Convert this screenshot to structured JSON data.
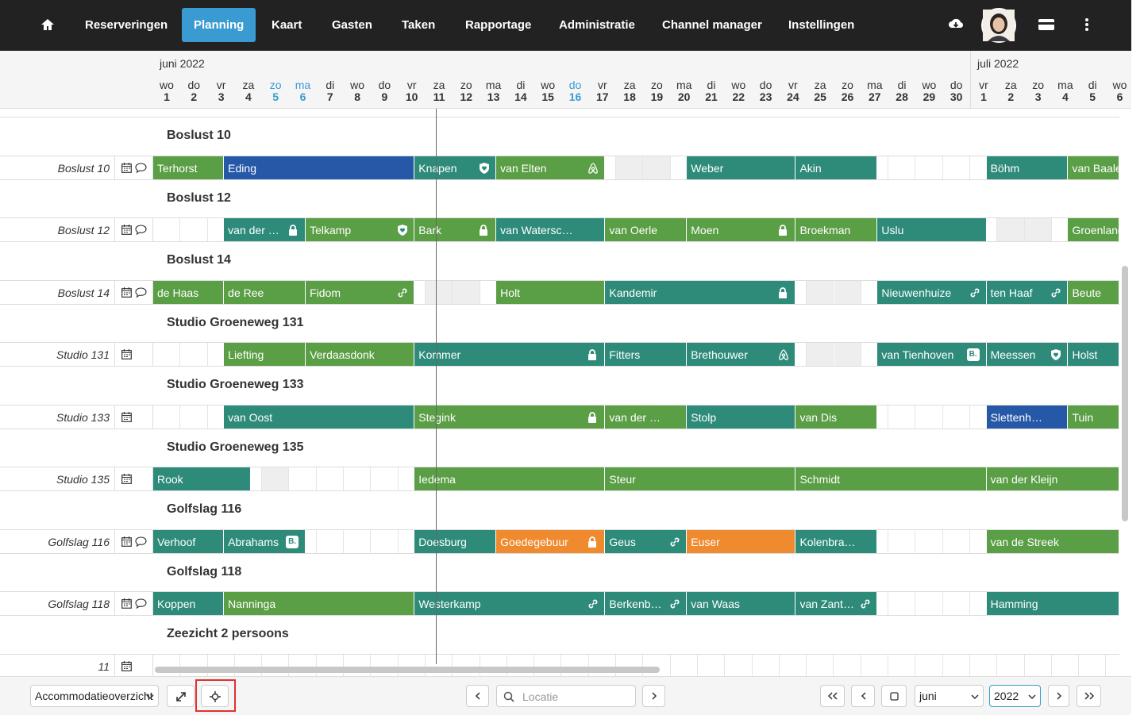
{
  "nav": {
    "items": [
      "Reserveringen",
      "Planning",
      "Kaart",
      "Gasten",
      "Taken",
      "Rapportage",
      "Administratie",
      "Channel manager",
      "Instellingen"
    ],
    "active": "Planning",
    "icons": [
      "home-icon",
      "cloud-download-icon",
      "user-avatar",
      "card-icon",
      "more-vertical-icon"
    ]
  },
  "calendar": {
    "months": [
      "juni 2022",
      "juli 2022"
    ],
    "days": [
      {
        "d": "wo",
        "n": "1"
      },
      {
        "d": "do",
        "n": "2"
      },
      {
        "d": "vr",
        "n": "3"
      },
      {
        "d": "za",
        "n": "4"
      },
      {
        "d": "zo",
        "n": "5",
        "hl": true
      },
      {
        "d": "ma",
        "n": "6",
        "hl": true
      },
      {
        "d": "di",
        "n": "7"
      },
      {
        "d": "wo",
        "n": "8"
      },
      {
        "d": "do",
        "n": "9"
      },
      {
        "d": "vr",
        "n": "10"
      },
      {
        "d": "za",
        "n": "11"
      },
      {
        "d": "zo",
        "n": "12"
      },
      {
        "d": "ma",
        "n": "13"
      },
      {
        "d": "di",
        "n": "14"
      },
      {
        "d": "wo",
        "n": "15"
      },
      {
        "d": "do",
        "n": "16",
        "hl": true
      },
      {
        "d": "vr",
        "n": "17"
      },
      {
        "d": "za",
        "n": "18"
      },
      {
        "d": "zo",
        "n": "19"
      },
      {
        "d": "ma",
        "n": "20"
      },
      {
        "d": "di",
        "n": "21"
      },
      {
        "d": "wo",
        "n": "22"
      },
      {
        "d": "do",
        "n": "23"
      },
      {
        "d": "vr",
        "n": "24"
      },
      {
        "d": "za",
        "n": "25"
      },
      {
        "d": "zo",
        "n": "26"
      },
      {
        "d": "ma",
        "n": "27"
      },
      {
        "d": "di",
        "n": "28"
      },
      {
        "d": "wo",
        "n": "29"
      },
      {
        "d": "do",
        "n": "30"
      },
      {
        "d": "vr",
        "n": "1"
      },
      {
        "d": "za",
        "n": "2"
      },
      {
        "d": "zo",
        "n": "3"
      },
      {
        "d": "ma",
        "n": "4"
      },
      {
        "d": "di",
        "n": "5"
      },
      {
        "d": "wo",
        "n": "6"
      }
    ]
  },
  "rows": [
    {
      "section": "Boslust 10",
      "unit": "Boslust 10",
      "comment": true,
      "bars": [
        {
          "s": 0,
          "e": 2.6,
          "c": "green",
          "t": "Terhorst"
        },
        {
          "s": 2.6,
          "e": 9.6,
          "c": "blue",
          "t": "Eding"
        },
        {
          "s": 9.6,
          "e": 12.6,
          "c": "teal",
          "t": "Knapen",
          "i": "heart-shield-icon"
        },
        {
          "s": 12.6,
          "e": 16.6,
          "c": "green",
          "t": "van Elten",
          "i": "airbnb-icon"
        },
        {
          "s": 19.6,
          "e": 23.6,
          "c": "teal",
          "t": "Weber"
        },
        {
          "s": 23.6,
          "e": 26.6,
          "c": "teal",
          "t": "Akin"
        },
        {
          "s": 30.6,
          "e": 33.6,
          "c": "teal",
          "t": "Böhm"
        },
        {
          "s": 33.6,
          "e": 36,
          "c": "green",
          "t": "van Baale"
        }
      ],
      "grey": [
        17,
        18
      ]
    },
    {
      "section": "Boslust 12",
      "unit": "Boslust 12",
      "comment": true,
      "bars": [
        {
          "s": 2.6,
          "e": 5.6,
          "c": "teal",
          "t": "van der …",
          "i": "lock-icon"
        },
        {
          "s": 5.6,
          "e": 9.6,
          "c": "green",
          "t": "Telkamp",
          "i": "heart-shield-icon"
        },
        {
          "s": 9.6,
          "e": 12.6,
          "c": "green",
          "t": "Bark",
          "i": "lock-icon"
        },
        {
          "s": 12.6,
          "e": 16.6,
          "c": "teal",
          "t": "van Watersc…"
        },
        {
          "s": 16.6,
          "e": 19.6,
          "c": "green",
          "t": "van Oerle"
        },
        {
          "s": 19.6,
          "e": 23.6,
          "c": "green",
          "t": "Moen",
          "i": "lock-icon"
        },
        {
          "s": 23.6,
          "e": 26.6,
          "c": "green",
          "t": "Broekman"
        },
        {
          "s": 26.6,
          "e": 30.6,
          "c": "teal",
          "t": "Uslu"
        },
        {
          "s": 33.6,
          "e": 36,
          "c": "green",
          "t": "Groenland"
        }
      ],
      "grey": [
        31,
        32
      ]
    },
    {
      "section": "Boslust 14",
      "unit": "Boslust 14",
      "comment": true,
      "bars": [
        {
          "s": 0,
          "e": 2.6,
          "c": "green",
          "t": "de Haas"
        },
        {
          "s": 2.6,
          "e": 5.6,
          "c": "green",
          "t": "de Ree"
        },
        {
          "s": 5.6,
          "e": 9.6,
          "c": "green",
          "t": "Fidom",
          "i": "link-icon"
        },
        {
          "s": 12.6,
          "e": 16.6,
          "c": "green",
          "t": "Holt"
        },
        {
          "s": 16.6,
          "e": 23.6,
          "c": "teal",
          "t": "Kandemir",
          "i": "lock-icon"
        },
        {
          "s": 26.6,
          "e": 30.6,
          "c": "teal",
          "t": "Nieuwenhuize",
          "i": "link-icon"
        },
        {
          "s": 30.6,
          "e": 33.6,
          "c": "teal",
          "t": "ten Haaf",
          "i": "link-icon"
        },
        {
          "s": 33.6,
          "e": 36,
          "c": "green",
          "t": "Beute"
        }
      ],
      "grey": [
        10,
        11,
        24,
        25
      ]
    },
    {
      "section": "Studio Groeneweg 131",
      "unit": "Studio 131",
      "comment": false,
      "bars": [
        {
          "s": 2.6,
          "e": 5.6,
          "c": "green",
          "t": "Liefting"
        },
        {
          "s": 5.6,
          "e": 9.6,
          "c": "green",
          "t": "Verdaasdonk"
        },
        {
          "s": 9.6,
          "e": 16.6,
          "c": "teal",
          "t": "Kommer",
          "i": "lock-icon"
        },
        {
          "s": 16.6,
          "e": 19.6,
          "c": "teal",
          "t": "Fitters"
        },
        {
          "s": 19.6,
          "e": 23.6,
          "c": "teal",
          "t": "Brethouwer",
          "i": "airbnb-icon"
        },
        {
          "s": 26.6,
          "e": 30.6,
          "c": "teal",
          "t": "van Tienhoven",
          "b": "B."
        },
        {
          "s": 30.6,
          "e": 33.6,
          "c": "teal",
          "t": "Meessen",
          "i": "heart-shield-icon"
        },
        {
          "s": 33.6,
          "e": 36,
          "c": "teal",
          "t": "Holst"
        }
      ],
      "grey": [
        24,
        25
      ]
    },
    {
      "section": "Studio Groeneweg 133",
      "unit": "Studio 133",
      "comment": false,
      "bars": [
        {
          "s": 2.6,
          "e": 9.6,
          "c": "teal",
          "t": "van Oost"
        },
        {
          "s": 9.6,
          "e": 16.6,
          "c": "green",
          "t": "Stegink",
          "i": "lock-icon"
        },
        {
          "s": 16.6,
          "e": 19.6,
          "c": "green",
          "t": "van der …"
        },
        {
          "s": 19.6,
          "e": 23.6,
          "c": "teal",
          "t": "Stolp"
        },
        {
          "s": 23.6,
          "e": 26.6,
          "c": "green",
          "t": "van Dis"
        },
        {
          "s": 30.6,
          "e": 33.6,
          "c": "blue",
          "t": "Slettenh…"
        },
        {
          "s": 33.6,
          "e": 36,
          "c": "green",
          "t": "Tuin"
        }
      ],
      "grey": []
    },
    {
      "section": "Studio Groeneweg 135",
      "unit": "Studio 135",
      "comment": false,
      "bars": [
        {
          "s": 0,
          "e": 3.6,
          "c": "teal",
          "t": "Rook"
        },
        {
          "s": 9.6,
          "e": 16.6,
          "c": "green",
          "t": "Iedema"
        },
        {
          "s": 16.6,
          "e": 23.6,
          "c": "green",
          "t": "Steur"
        },
        {
          "s": 23.6,
          "e": 30.6,
          "c": "green",
          "t": "Schmidt"
        },
        {
          "s": 30.6,
          "e": 36,
          "c": "green",
          "t": "van der Kleijn"
        }
      ],
      "grey": [
        4
      ]
    },
    {
      "section": "Golfslag 116",
      "unit": "Golfslag 116",
      "comment": true,
      "bars": [
        {
          "s": 0,
          "e": 2.6,
          "c": "teal",
          "t": "Verhoof"
        },
        {
          "s": 2.6,
          "e": 5.6,
          "c": "teal",
          "t": "Abrahams",
          "b": "B."
        },
        {
          "s": 9.6,
          "e": 12.6,
          "c": "teal",
          "t": "Doesburg"
        },
        {
          "s": 12.6,
          "e": 16.6,
          "c": "orange",
          "t": "Goedegebuur",
          "i": "lock-icon"
        },
        {
          "s": 16.6,
          "e": 19.6,
          "c": "teal",
          "t": "Geus",
          "i": "link-icon"
        },
        {
          "s": 19.6,
          "e": 23.6,
          "c": "orange",
          "t": "Euser"
        },
        {
          "s": 23.6,
          "e": 26.6,
          "c": "teal",
          "t": "Kolenbra…"
        },
        {
          "s": 30.6,
          "e": 36,
          "c": "green",
          "t": "van de Streek"
        }
      ],
      "grey": []
    },
    {
      "section": "Golfslag 118",
      "unit": "Golfslag 118",
      "comment": true,
      "bars": [
        {
          "s": 0,
          "e": 2.6,
          "c": "teal",
          "t": "Koppen"
        },
        {
          "s": 2.6,
          "e": 9.6,
          "c": "green",
          "t": "Nanninga"
        },
        {
          "s": 9.6,
          "e": 16.6,
          "c": "teal",
          "t": "Westerkamp",
          "i": "link-icon"
        },
        {
          "s": 16.6,
          "e": 19.6,
          "c": "teal",
          "t": "Berkenb…",
          "i": "link-icon"
        },
        {
          "s": 19.6,
          "e": 23.6,
          "c": "teal",
          "t": "van Waas"
        },
        {
          "s": 23.6,
          "e": 26.6,
          "c": "teal",
          "t": "van Zant…",
          "i": "link-icon"
        },
        {
          "s": 30.6,
          "e": 36,
          "c": "teal",
          "t": "Hamming"
        }
      ],
      "grey": []
    },
    {
      "section": "Zeezicht 2 persoons",
      "unit": "11",
      "comment": false,
      "bars": [],
      "grey": []
    }
  ],
  "footer": {
    "view_select": "Accommodatieoverzicht",
    "search_placeholder": "Locatie",
    "month_select": "juni",
    "year_select": "2022"
  },
  "colors": {
    "green": "#5a9e45",
    "teal": "#2e8b7a",
    "blue": "#2658a8",
    "orange": "#ef8a2e",
    "accent": "#3a9bd2"
  }
}
